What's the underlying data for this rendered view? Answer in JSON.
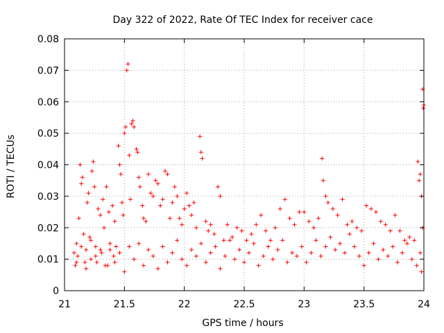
{
  "chart_data": {
    "type": "scatter",
    "title": "Day 322 of 2022, Rate Of TEC Index for receiver cace",
    "xlabel": "GPS time / hours",
    "ylabel": "ROTI / TECUs",
    "xlim": [
      21,
      24
    ],
    "ylim": [
      0,
      0.08
    ],
    "grid": true,
    "marker": "+",
    "marker_color": "#ff0000",
    "x_ticks": [
      21,
      21.5,
      22,
      22.5,
      23,
      23.5,
      24
    ],
    "x_tick_labels": [
      "21",
      "21.5",
      "22",
      "22.5",
      "23",
      "23.5",
      "24"
    ],
    "y_ticks": [
      0,
      0.01,
      0.02,
      0.03,
      0.04,
      0.05,
      0.06,
      0.07,
      0.08
    ],
    "y_tick_labels": [
      "0",
      "0.01",
      "0.02",
      "0.03",
      "0.04",
      "0.05",
      "0.06",
      "0.07",
      "0.08"
    ],
    "series": [
      {
        "name": "ROTI",
        "color": "#ff0000",
        "points": [
          [
            21.08,
            0.012
          ],
          [
            21.09,
            0.008
          ],
          [
            21.1,
            0.015
          ],
          [
            21.11,
            0.011
          ],
          [
            21.12,
            0.023
          ],
          [
            21.13,
            0.04
          ],
          [
            21.14,
            0.034
          ],
          [
            21.15,
            0.036
          ],
          [
            21.16,
            0.018
          ],
          [
            21.17,
            0.009
          ],
          [
            21.18,
            0.013
          ],
          [
            21.19,
            0.028
          ],
          [
            21.2,
            0.031
          ],
          [
            21.21,
            0.017
          ],
          [
            21.22,
            0.01
          ],
          [
            21.23,
            0.038
          ],
          [
            21.24,
            0.041
          ],
          [
            21.25,
            0.033
          ],
          [
            21.26,
            0.014
          ],
          [
            21.27,
            0.009
          ],
          [
            21.28,
            0.026
          ],
          [
            21.3,
            0.024
          ],
          [
            21.31,
            0.012
          ],
          [
            21.32,
            0.029
          ],
          [
            21.33,
            0.02
          ],
          [
            21.35,
            0.033
          ],
          [
            21.36,
            0.008
          ],
          [
            21.37,
            0.025
          ],
          [
            21.38,
            0.013
          ],
          [
            21.4,
            0.027
          ],
          [
            21.41,
            0.011
          ],
          [
            21.42,
            0.022
          ],
          [
            21.43,
            0.014
          ],
          [
            21.45,
            0.046
          ],
          [
            21.46,
            0.04
          ],
          [
            21.47,
            0.037
          ],
          [
            21.48,
            0.028
          ],
          [
            21.49,
            0.024
          ],
          [
            21.5,
            0.05
          ],
          [
            21.51,
            0.052
          ],
          [
            21.52,
            0.07
          ],
          [
            21.53,
            0.072
          ],
          [
            21.54,
            0.043
          ],
          [
            21.55,
            0.029
          ],
          [
            21.56,
            0.053
          ],
          [
            21.57,
            0.054
          ],
          [
            21.58,
            0.052
          ],
          [
            21.6,
            0.045
          ],
          [
            21.61,
            0.044
          ],
          [
            21.62,
            0.036
          ],
          [
            21.63,
            0.033
          ],
          [
            21.65,
            0.027
          ],
          [
            21.66,
            0.023
          ],
          [
            21.68,
            0.022
          ],
          [
            21.7,
            0.037
          ],
          [
            21.72,
            0.031
          ],
          [
            21.74,
            0.03
          ],
          [
            21.76,
            0.035
          ],
          [
            21.78,
            0.034
          ],
          [
            21.8,
            0.027
          ],
          [
            21.82,
            0.029
          ],
          [
            21.84,
            0.038
          ],
          [
            21.86,
            0.037
          ],
          [
            21.88,
            0.023
          ],
          [
            21.9,
            0.028
          ],
          [
            21.92,
            0.033
          ],
          [
            21.94,
            0.03
          ],
          [
            21.96,
            0.023
          ],
          [
            21.98,
            0.021
          ],
          [
            22.0,
            0.026
          ],
          [
            22.02,
            0.031
          ],
          [
            22.04,
            0.027
          ],
          [
            22.06,
            0.024
          ],
          [
            22.08,
            0.028
          ],
          [
            22.1,
            0.02
          ],
          [
            22.13,
            0.049
          ],
          [
            22.14,
            0.044
          ],
          [
            22.15,
            0.042
          ],
          [
            22.18,
            0.022
          ],
          [
            22.2,
            0.019
          ],
          [
            22.22,
            0.021
          ],
          [
            22.25,
            0.018
          ],
          [
            22.28,
            0.033
          ],
          [
            22.3,
            0.03
          ],
          [
            22.33,
            0.016
          ],
          [
            22.36,
            0.021
          ],
          [
            22.4,
            0.017
          ],
          [
            22.44,
            0.02
          ],
          [
            22.48,
            0.019
          ],
          [
            22.52,
            0.016
          ],
          [
            22.56,
            0.018
          ],
          [
            22.6,
            0.021
          ],
          [
            22.64,
            0.024
          ],
          [
            22.68,
            0.019
          ],
          [
            22.72,
            0.016
          ],
          [
            22.76,
            0.02
          ],
          [
            22.8,
            0.026
          ],
          [
            22.84,
            0.029
          ],
          [
            22.88,
            0.023
          ],
          [
            22.92,
            0.021
          ],
          [
            22.96,
            0.025
          ],
          [
            23.0,
            0.025
          ],
          [
            23.04,
            0.022
          ],
          [
            23.08,
            0.02
          ],
          [
            23.12,
            0.023
          ],
          [
            23.15,
            0.042
          ],
          [
            23.16,
            0.035
          ],
          [
            23.18,
            0.03
          ],
          [
            23.2,
            0.028
          ],
          [
            23.24,
            0.026
          ],
          [
            23.28,
            0.024
          ],
          [
            23.32,
            0.029
          ],
          [
            23.36,
            0.021
          ],
          [
            23.4,
            0.022
          ],
          [
            23.44,
            0.02
          ],
          [
            23.48,
            0.019
          ],
          [
            23.52,
            0.027
          ],
          [
            23.56,
            0.026
          ],
          [
            23.6,
            0.025
          ],
          [
            23.64,
            0.022
          ],
          [
            23.68,
            0.021
          ],
          [
            23.72,
            0.019
          ],
          [
            23.76,
            0.024
          ],
          [
            23.8,
            0.019
          ],
          [
            23.84,
            0.016
          ],
          [
            23.88,
            0.017
          ],
          [
            23.92,
            0.016
          ],
          [
            23.95,
            0.041
          ],
          [
            23.96,
            0.035
          ],
          [
            23.97,
            0.037
          ],
          [
            23.98,
            0.03
          ],
          [
            23.99,
            0.064
          ],
          [
            23.995,
            0.058
          ],
          [
            24.0,
            0.059
          ],
          [
            23.99,
            0.02
          ],
          [
            23.98,
            0.006
          ],
          [
            21.1,
            0.009
          ],
          [
            21.14,
            0.014
          ],
          [
            21.18,
            0.007
          ],
          [
            21.22,
            0.016
          ],
          [
            21.26,
            0.011
          ],
          [
            21.3,
            0.013
          ],
          [
            21.34,
            0.008
          ],
          [
            21.38,
            0.015
          ],
          [
            21.42,
            0.009
          ],
          [
            21.46,
            0.012
          ],
          [
            21.5,
            0.006
          ],
          [
            21.54,
            0.014
          ],
          [
            21.58,
            0.01
          ],
          [
            21.62,
            0.015
          ],
          [
            21.66,
            0.008
          ],
          [
            21.7,
            0.013
          ],
          [
            21.74,
            0.011
          ],
          [
            21.78,
            0.007
          ],
          [
            21.82,
            0.014
          ],
          [
            21.86,
            0.009
          ],
          [
            21.9,
            0.012
          ],
          [
            21.94,
            0.016
          ],
          [
            21.98,
            0.01
          ],
          [
            22.02,
            0.008
          ],
          [
            22.06,
            0.013
          ],
          [
            22.1,
            0.011
          ],
          [
            22.14,
            0.015
          ],
          [
            22.18,
            0.009
          ],
          [
            22.22,
            0.012
          ],
          [
            22.26,
            0.014
          ],
          [
            22.3,
            0.007
          ],
          [
            22.34,
            0.011
          ],
          [
            22.38,
            0.016
          ],
          [
            22.42,
            0.01
          ],
          [
            22.46,
            0.013
          ],
          [
            22.5,
            0.009
          ],
          [
            22.54,
            0.012
          ],
          [
            22.58,
            0.015
          ],
          [
            22.62,
            0.008
          ],
          [
            22.66,
            0.011
          ],
          [
            22.7,
            0.014
          ],
          [
            22.74,
            0.01
          ],
          [
            22.78,
            0.013
          ],
          [
            22.82,
            0.016
          ],
          [
            22.86,
            0.009
          ],
          [
            22.9,
            0.012
          ],
          [
            22.94,
            0.011
          ],
          [
            22.98,
            0.014
          ],
          [
            23.02,
            0.009
          ],
          [
            23.06,
            0.012
          ],
          [
            23.1,
            0.016
          ],
          [
            23.14,
            0.011
          ],
          [
            23.18,
            0.014
          ],
          [
            23.22,
            0.017
          ],
          [
            23.26,
            0.013
          ],
          [
            23.3,
            0.015
          ],
          [
            23.34,
            0.012
          ],
          [
            23.38,
            0.018
          ],
          [
            23.42,
            0.014
          ],
          [
            23.46,
            0.011
          ],
          [
            23.5,
            0.008
          ],
          [
            23.54,
            0.012
          ],
          [
            23.58,
            0.015
          ],
          [
            23.62,
            0.01
          ],
          [
            23.66,
            0.013
          ],
          [
            23.7,
            0.011
          ],
          [
            23.74,
            0.014
          ],
          [
            23.78,
            0.009
          ],
          [
            23.82,
            0.012
          ],
          [
            23.86,
            0.015
          ],
          [
            23.9,
            0.01
          ],
          [
            23.94,
            0.008
          ],
          [
            23.97,
            0.012
          ]
        ]
      }
    ]
  }
}
